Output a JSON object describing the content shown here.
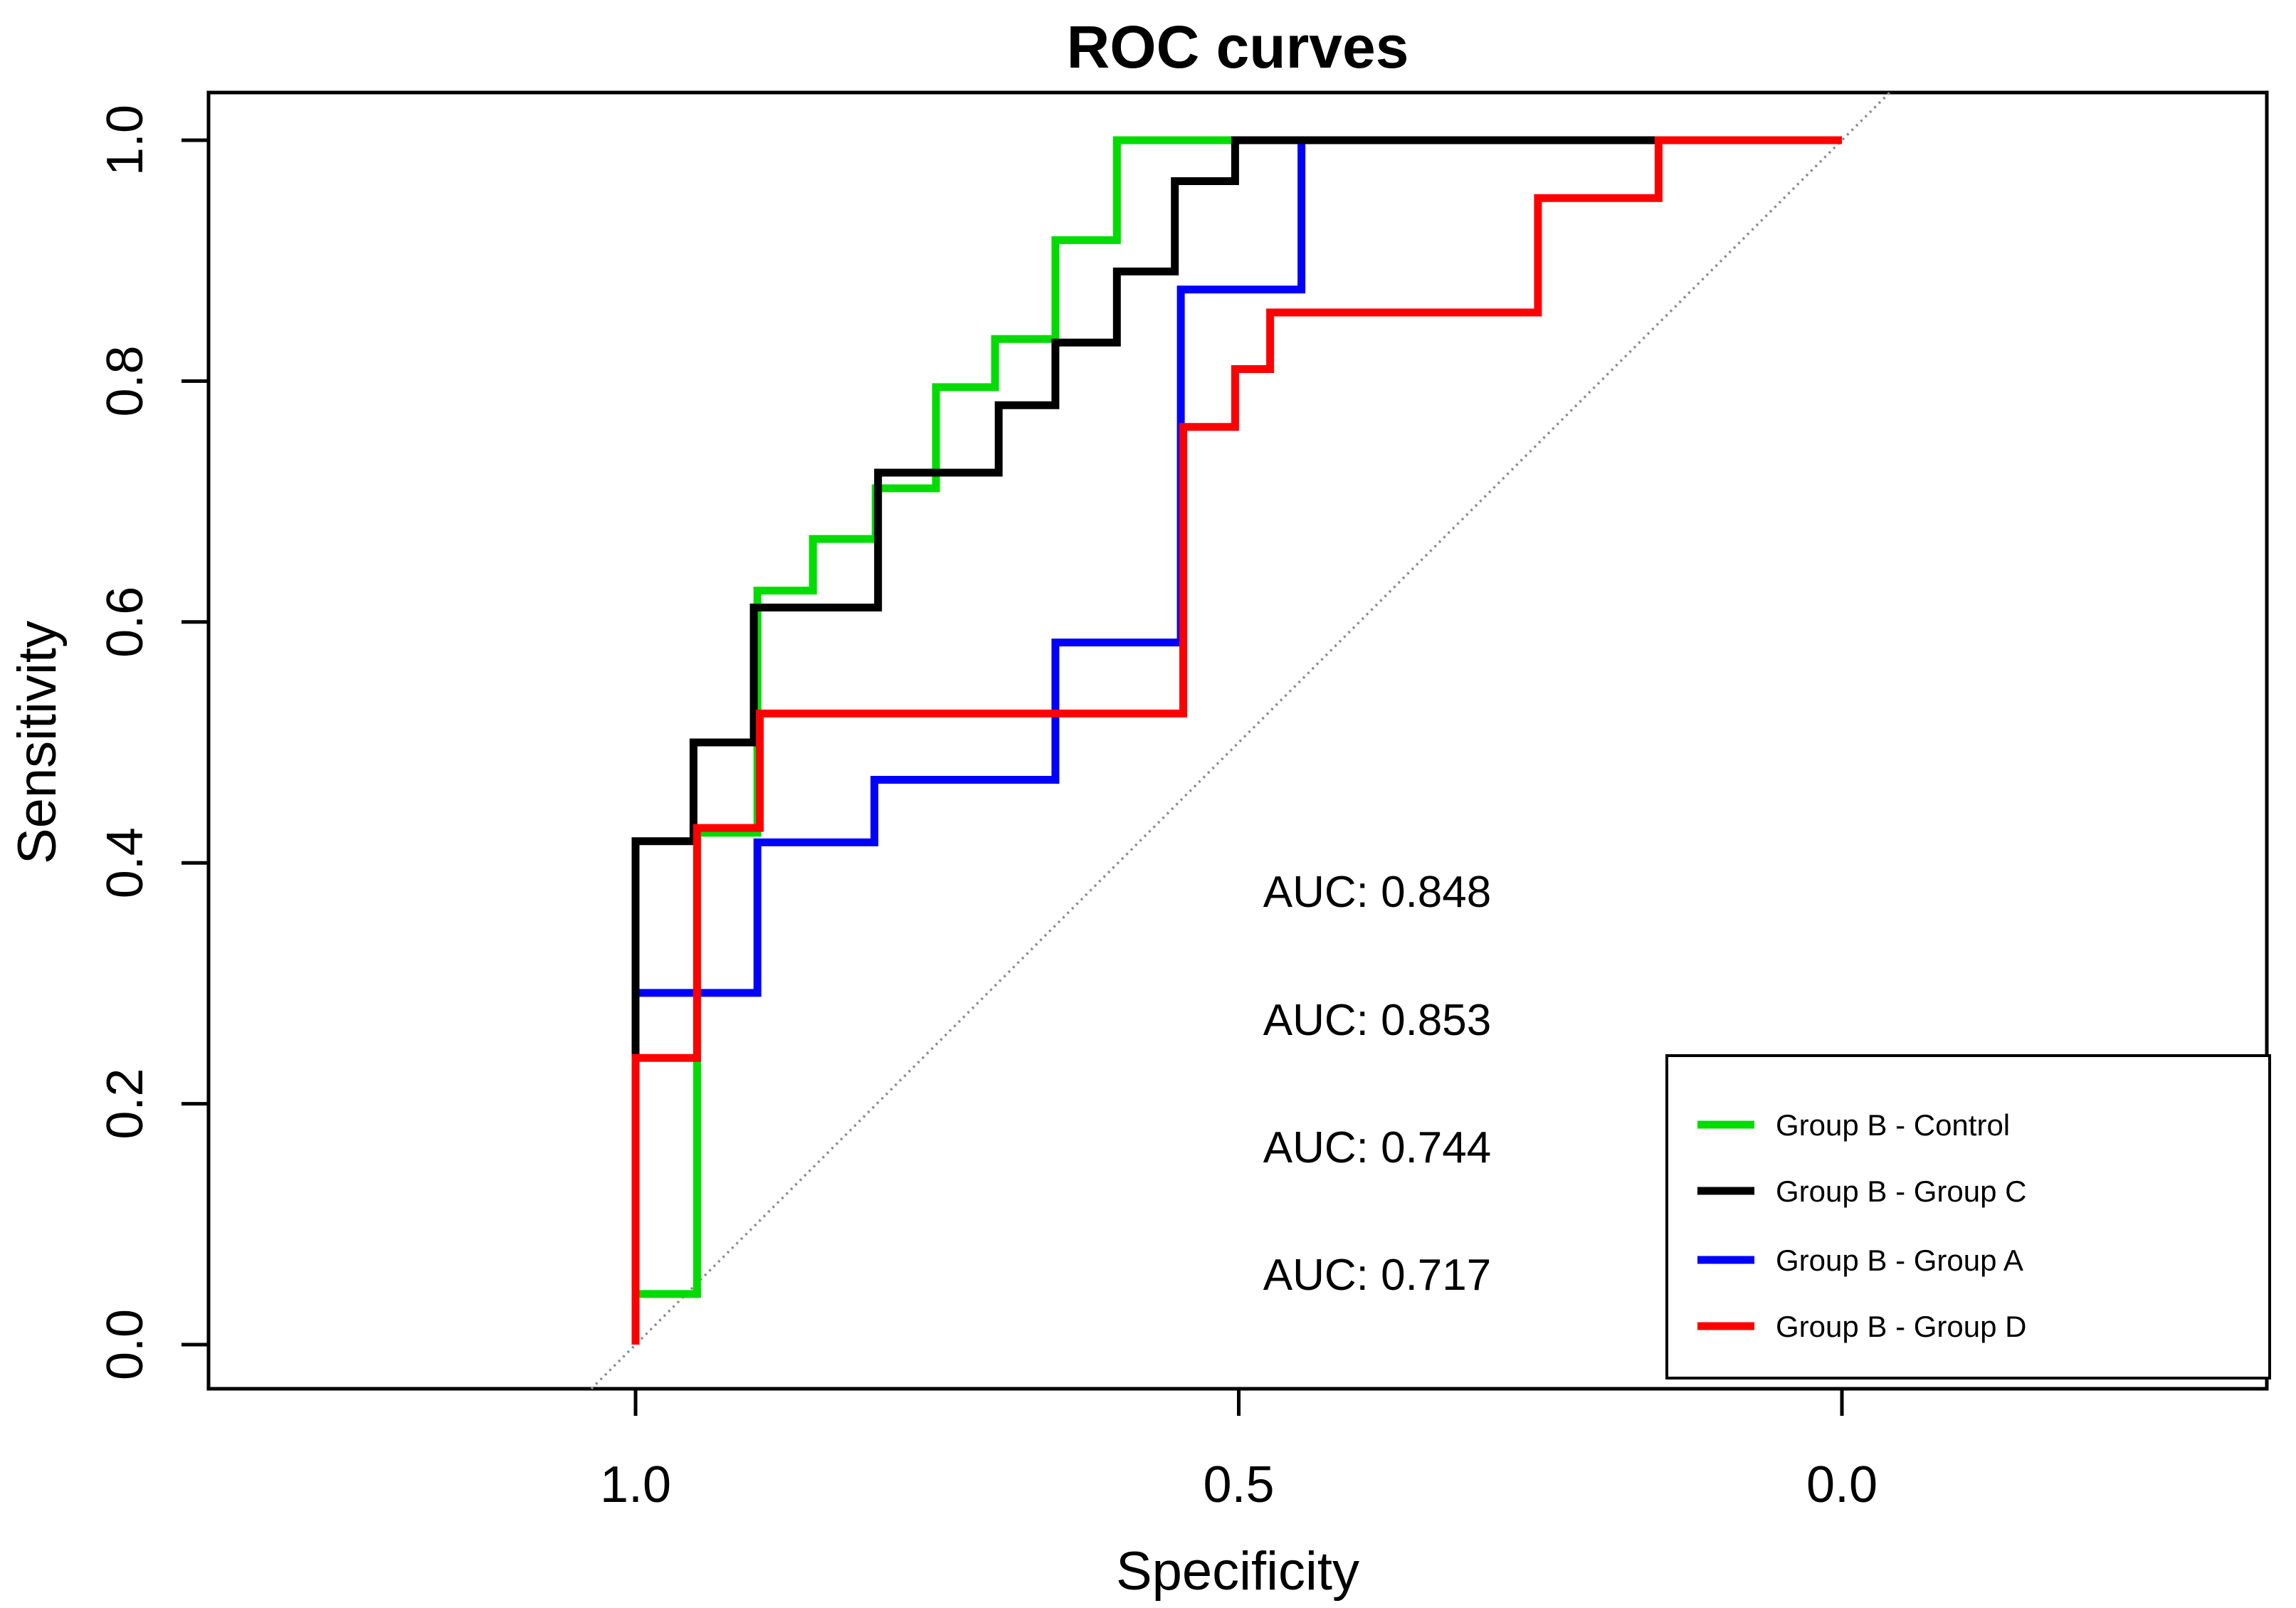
{
  "title": "ROC curves",
  "axes": {
    "x": {
      "title": "Specificity",
      "reversed": true,
      "ticks": [
        {
          "value": 1.0,
          "label": "1.0"
        },
        {
          "value": 0.5,
          "label": "0.5"
        },
        {
          "value": 0.0,
          "label": "0.0"
        }
      ]
    },
    "y": {
      "title": "Sensitivity",
      "ticks": [
        {
          "value": 0.0,
          "label": "0.0"
        },
        {
          "value": 0.2,
          "label": "0.2"
        },
        {
          "value": 0.4,
          "label": "0.4"
        },
        {
          "value": 0.6,
          "label": "0.6"
        },
        {
          "value": 0.8,
          "label": "0.8"
        },
        {
          "value": 1.0,
          "label": "1.0"
        }
      ]
    }
  },
  "auc_labels": [
    {
      "text": "AUC: 0.848",
      "color": "#00DC00"
    },
    {
      "text": "AUC: 0.853",
      "color": "#000000"
    },
    {
      "text": "AUC: 0.744",
      "color": "#0000FF"
    },
    {
      "text": "AUC: 0.717",
      "color": "#FF0000"
    }
  ],
  "legend": {
    "items": [
      {
        "label": "Group B - Control",
        "color": "#00DC00"
      },
      {
        "label": "Group B - Group C",
        "color": "#000000"
      },
      {
        "label": "Group B - Group A",
        "color": "#0000FF"
      },
      {
        "label": "Group B - Group D",
        "color": "#FF0000"
      }
    ]
  },
  "chart_data": {
    "type": "line",
    "subtype": "roc-step-curves",
    "xlabel": "Specificity",
    "ylabel": "Sensitivity",
    "x_range_ticks": [
      1.0,
      0.5,
      0.0
    ],
    "y_range_ticks": [
      0.0,
      0.2,
      0.4,
      0.6,
      0.8,
      1.0
    ],
    "x_axis_reversed": true,
    "grid": false,
    "diagonal_reference_line": {
      "from_spec_sens": [
        1.0,
        0.0
      ],
      "to_spec_sens": [
        0.0,
        1.0
      ],
      "color": "#8c8c8c"
    },
    "legend_position": "bottom-right",
    "plot_order": [
      0,
      2,
      1,
      3
    ],
    "series": [
      {
        "name": "Group B - Control",
        "color": "#00DC00",
        "auc": 0.848,
        "points_spec_sens": [
          [
            1,
            0
          ],
          [
            1,
            0.042
          ],
          [
            0.949,
            0.042
          ],
          [
            0.949,
            0.425
          ],
          [
            0.899,
            0.425
          ],
          [
            0.899,
            0.626
          ],
          [
            0.853,
            0.626
          ],
          [
            0.853,
            0.669
          ],
          [
            0.801,
            0.669
          ],
          [
            0.801,
            0.711
          ],
          [
            0.751,
            0.711
          ],
          [
            0.751,
            0.795
          ],
          [
            0.702,
            0.795
          ],
          [
            0.702,
            0.835
          ],
          [
            0.652,
            0.835
          ],
          [
            0.652,
            0.917
          ],
          [
            0.601,
            0.917
          ],
          [
            0.601,
            1
          ],
          [
            0,
            1
          ]
        ]
      },
      {
        "name": "Group B - Group C",
        "color": "#000000",
        "auc": 0.853,
        "points_spec_sens": [
          [
            1,
            0
          ],
          [
            1,
            0.418
          ],
          [
            0.952,
            0.418
          ],
          [
            0.952,
            0.5
          ],
          [
            0.902,
            0.5
          ],
          [
            0.902,
            0.612
          ],
          [
            0.799,
            0.612
          ],
          [
            0.799,
            0.724
          ],
          [
            0.699,
            0.724
          ],
          [
            0.699,
            0.78
          ],
          [
            0.652,
            0.78
          ],
          [
            0.652,
            0.832
          ],
          [
            0.601,
            0.832
          ],
          [
            0.601,
            0.891
          ],
          [
            0.553,
            0.891
          ],
          [
            0.553,
            0.966
          ],
          [
            0.503,
            0.966
          ],
          [
            0.503,
            1
          ],
          [
            0,
            1
          ]
        ]
      },
      {
        "name": "Group B - Group A",
        "color": "#0000FF",
        "auc": 0.744,
        "points_spec_sens": [
          [
            1,
            0
          ],
          [
            1,
            0.292
          ],
          [
            0.899,
            0.292
          ],
          [
            0.899,
            0.417
          ],
          [
            0.802,
            0.417
          ],
          [
            0.802,
            0.469
          ],
          [
            0.652,
            0.469
          ],
          [
            0.652,
            0.583
          ],
          [
            0.548,
            0.583
          ],
          [
            0.548,
            0.876
          ],
          [
            0.448,
            0.876
          ],
          [
            0.448,
            1
          ],
          [
            0,
            1
          ]
        ]
      },
      {
        "name": "Group B - Group D",
        "color": "#FF0000",
        "auc": 0.717,
        "points_spec_sens": [
          [
            1,
            0
          ],
          [
            1,
            0.238
          ],
          [
            0.949,
            0.238
          ],
          [
            0.949,
            0.429
          ],
          [
            0.897,
            0.429
          ],
          [
            0.897,
            0.524
          ],
          [
            0.546,
            0.524
          ],
          [
            0.546,
            0.762
          ],
          [
            0.503,
            0.762
          ],
          [
            0.503,
            0.81
          ],
          [
            0.474,
            0.81
          ],
          [
            0.474,
            0.857
          ],
          [
            0.252,
            0.857
          ],
          [
            0.252,
            0.952
          ],
          [
            0.152,
            0.952
          ],
          [
            0.152,
            1
          ],
          [
            0,
            1
          ]
        ]
      }
    ]
  }
}
